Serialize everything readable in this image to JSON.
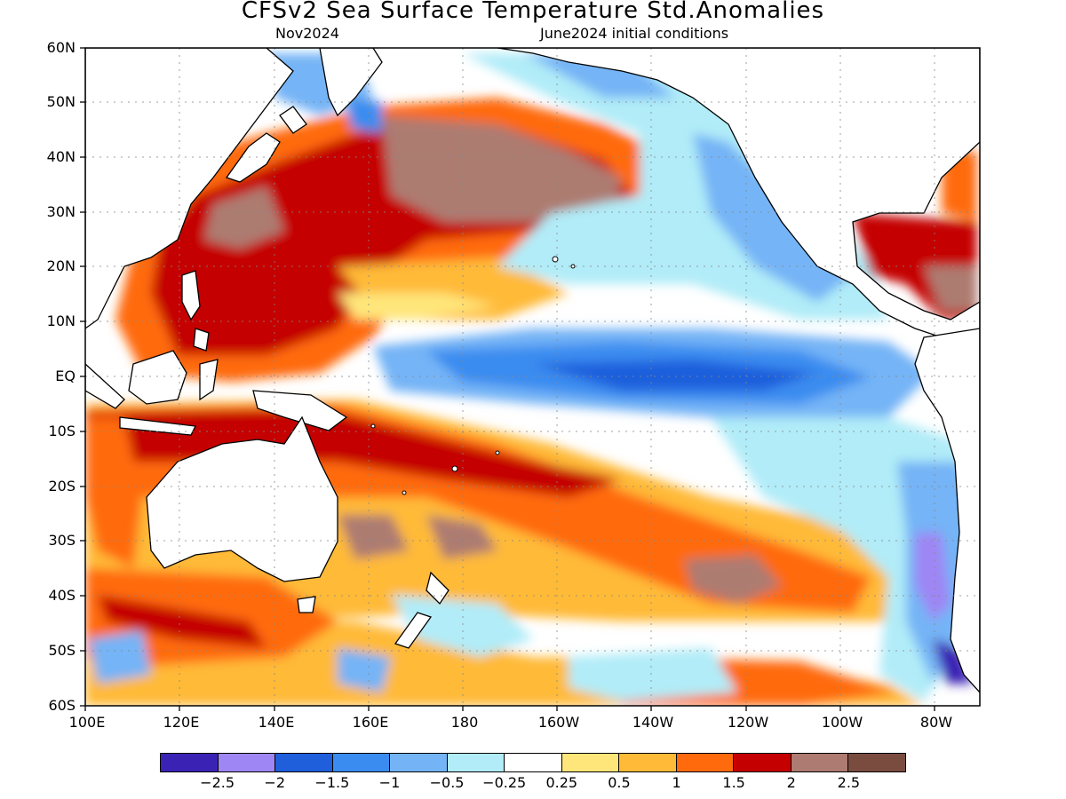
{
  "header": {
    "title": "CFSv2 Sea Surface Temperature Std.Anomalies",
    "valid_month": "Nov2024",
    "init_conditions": "June2024 initial conditions"
  },
  "axes": {
    "lat_labels": [
      "60N",
      "50N",
      "40N",
      "30N",
      "20N",
      "10N",
      "EQ",
      "10S",
      "20S",
      "30S",
      "40S",
      "50S",
      "60S"
    ],
    "lon_labels": [
      "100E",
      "120E",
      "140E",
      "160E",
      "180",
      "160W",
      "140W",
      "120W",
      "100W",
      "80W"
    ]
  },
  "legend": {
    "colors": [
      "#3a23b4",
      "#9e86f5",
      "#1f5fdc",
      "#3a8cf0",
      "#74b4f6",
      "#b1ecf8",
      "#ffffff",
      "#ffe67a",
      "#ffba38",
      "#ff6a0c",
      "#c40000",
      "#ad7b71",
      "#7a4c3f"
    ],
    "labels": [
      "-2.5",
      "-2",
      "-1.5",
      "-1",
      "-0.5",
      "-0.25",
      "0.25",
      "0.5",
      "1",
      "1.5",
      "2",
      "2.5"
    ]
  },
  "map": {
    "lon_range": [
      "100E",
      "70W"
    ],
    "lat_range": [
      "60S",
      "60N"
    ],
    "grid": true
  }
}
